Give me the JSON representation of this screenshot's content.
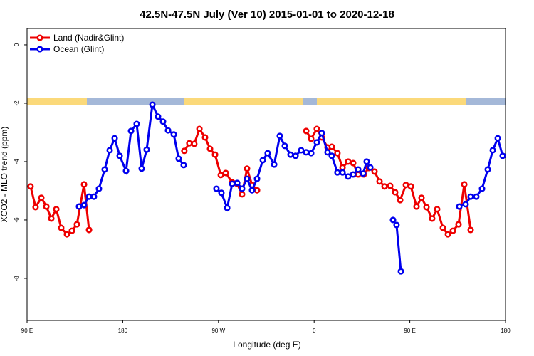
{
  "chart_data": {
    "type": "line",
    "title": "42.5N-47.5N July (Ver 10)   2015-01-01 to 2020-12-18",
    "x_label": "Longitude (deg E)",
    "y_label": "XCO2 - MLO trend (ppm)",
    "xlim": [
      90,
      540
    ],
    "xticks": [
      {
        "value": 90,
        "label": "90 E"
      },
      {
        "value": 180,
        "label": "180"
      },
      {
        "value": 270,
        "label": "90 W"
      },
      {
        "value": 360,
        "label": "0"
      },
      {
        "value": 450,
        "label": "90 E"
      },
      {
        "value": 540,
        "label": "180"
      }
    ],
    "ylim": [
      -9.44,
      0.56
    ],
    "yticks": [
      0,
      -2,
      -4,
      -6,
      -8
    ],
    "legend": "top-left",
    "series": [
      {
        "name": "Land (Nadir&Glint)",
        "color": "#ee0000",
        "x": [
          93.3,
          98,
          103.4,
          108.1,
          112.8,
          117.5,
          122.1,
          127.5,
          132.2,
          136.9,
          143.6,
          148.3,
          null,
          237.9,
          242.6,
          247.3,
          252.1,
          257.4,
          262.1,
          266.8,
          272.2,
          276.9,
          282.9,
          287.6,
          292.2,
          296.9,
          301.6,
          306.3,
          null,
          352.5,
          357.2,
          362.5,
          367.2,
          372.6,
          376.6,
          381.9,
          386.7,
          392,
          396.7,
          401.4,
          406.7,
          411.4,
          416.8,
          421.5,
          426.2,
          431.5,
          436.2,
          440.9,
          446.3,
          451,
          456.3,
          461,
          465.7,
          471,
          475.7,
          481.1,
          485.8,
          490.5,
          495.8,
          501.2,
          507.2
        ],
        "values": [
          -4.85,
          -5.56,
          -5.24,
          -5.54,
          -5.95,
          -5.63,
          -6.27,
          -6.49,
          -6.37,
          -6.15,
          -4.78,
          -6.34,
          null,
          -3.63,
          -3.37,
          -3.39,
          -2.88,
          -3.17,
          -3.56,
          -3.76,
          -4.46,
          -4.39,
          -4.71,
          -4.76,
          -5.12,
          -4.24,
          -4.8,
          -4.98,
          null,
          -2.95,
          -3.22,
          -2.88,
          -3.17,
          -3.51,
          -3.49,
          -3.71,
          -4.2,
          -4.0,
          -4.05,
          -4.44,
          -4.44,
          -4.22,
          -4.34,
          -4.68,
          -4.85,
          -4.83,
          -5.05,
          -5.32,
          -4.8,
          -4.85,
          -5.54,
          -5.24,
          -5.56,
          -5.95,
          -5.63,
          -6.27,
          -6.49,
          -6.37,
          -6.15,
          -4.78,
          -6.34
        ]
      },
      {
        "name": "Ocean (Glint)",
        "color": "#0000ee",
        "x": [
          138.9,
          143.6,
          148.3,
          152.9,
          157.6,
          163,
          167.7,
          172.4,
          177.1,
          183.1,
          187.8,
          193.1,
          197.8,
          202.5,
          207.9,
          213.2,
          217.9,
          222.6,
          228,
          232.6,
          237.3,
          null,
          268.1,
          272.8,
          278.2,
          282.9,
          287.6,
          292.2,
          296.9,
          301.6,
          306.3,
          311.7,
          316.3,
          322.4,
          327.7,
          332.4,
          337.8,
          342.5,
          347.8,
          352.5,
          357.2,
          362.5,
          367.2,
          372.6,
          376.6,
          381.9,
          386.7,
          392,
          396.7,
          401.4,
          406.1,
          409.4,
          412.8,
          null,
          434.2,
          437.5,
          441.6,
          null,
          496.5,
          502.5,
          507.2,
          512.5,
          517.9,
          523.3,
          528,
          532.7,
          537.3
        ],
        "values": [
          -5.54,
          -5.49,
          -5.2,
          -5.2,
          -4.93,
          -4.27,
          -3.61,
          -3.2,
          -3.8,
          -4.32,
          -2.95,
          -2.71,
          -4.24,
          -3.59,
          -2.05,
          -2.46,
          -2.63,
          -2.93,
          -3.07,
          -3.9,
          -4.12,
          null,
          -4.93,
          -5.07,
          -5.59,
          -4.76,
          -4.73,
          -4.93,
          -4.59,
          -4.98,
          -4.59,
          -3.95,
          -3.71,
          -4.1,
          -3.12,
          -3.46,
          -3.76,
          -3.8,
          -3.61,
          -3.68,
          -3.71,
          -3.34,
          -3.02,
          -3.68,
          -3.8,
          -4.37,
          -4.37,
          -4.51,
          -4.44,
          -4.27,
          -4.41,
          -4.0,
          -4.2,
          null,
          -6.0,
          -6.17,
          -7.76,
          null,
          -5.54,
          -5.46,
          -5.2,
          -5.2,
          -4.93,
          -4.27,
          -3.61,
          -3.2,
          -3.8
        ]
      }
    ]
  }
}
